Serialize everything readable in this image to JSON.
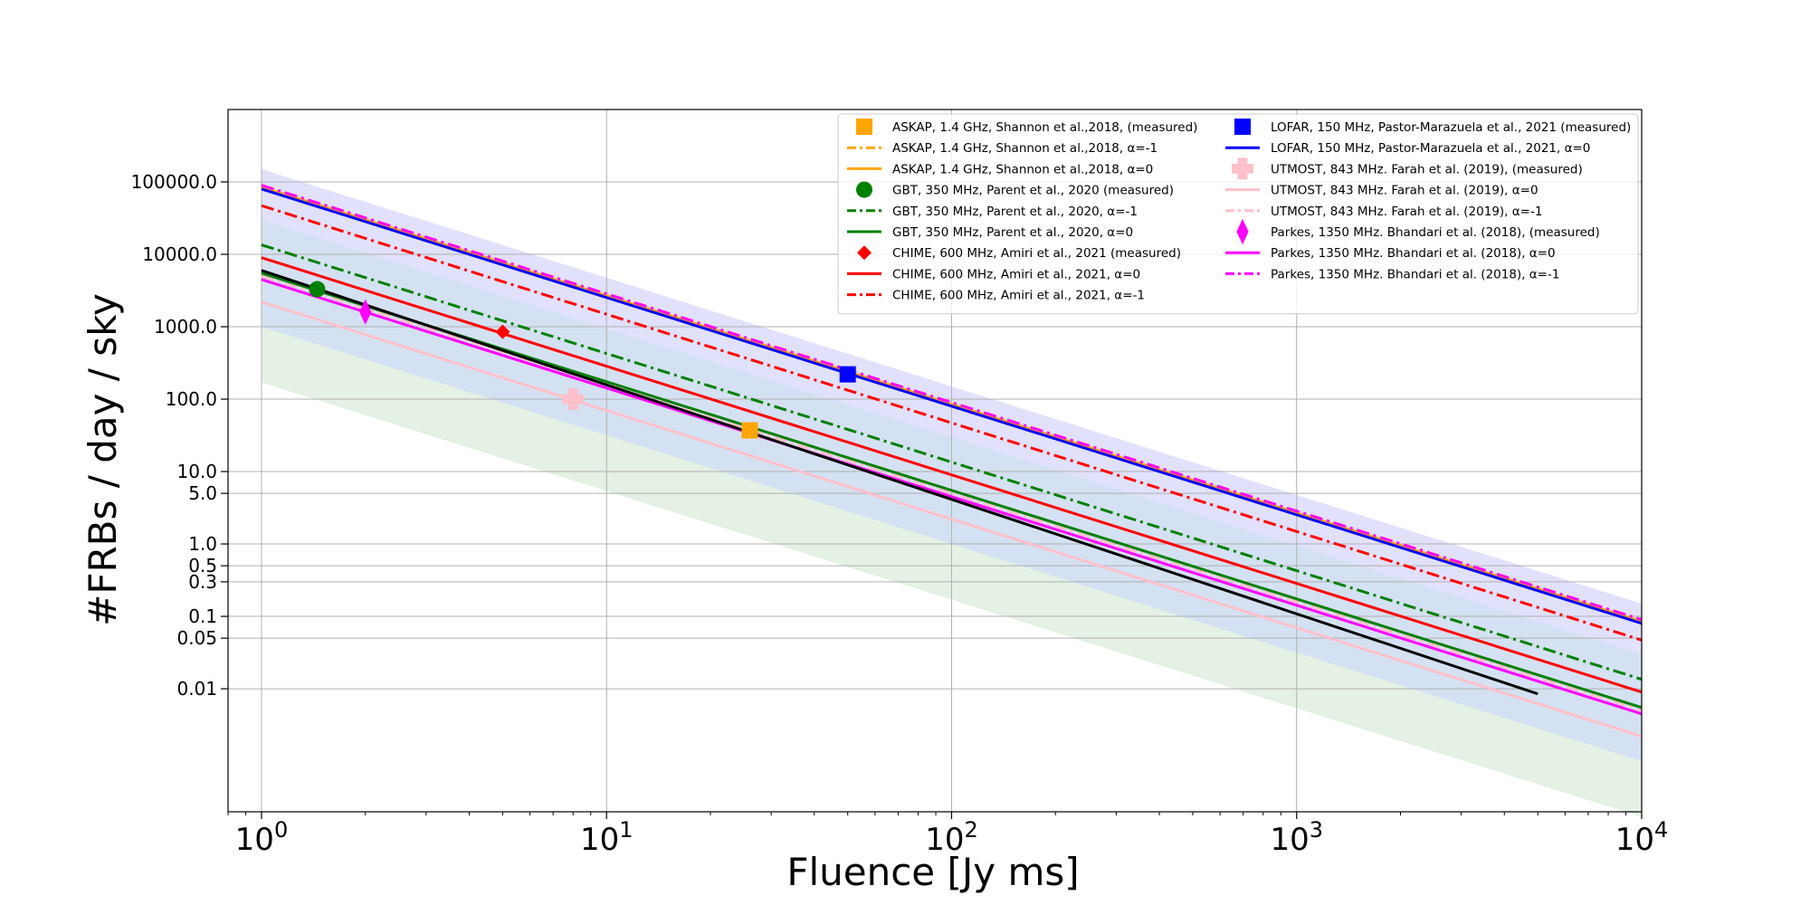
{
  "chart_data": {
    "type": "line",
    "xlabel": "Fluence [Jy ms]",
    "ylabel": "#FRBs / day / sky",
    "xscale": "log",
    "yscale": "log",
    "xlim": [
      0.8,
      10000
    ],
    "ylim": [
      0.0002,
      1000000
    ],
    "grid": true,
    "legend_position": "top-right",
    "legend_columns": 2,
    "x_ticks": [
      {
        "value": 1,
        "base": "10",
        "exp": "0"
      },
      {
        "value": 10,
        "base": "10",
        "exp": "1"
      },
      {
        "value": 100,
        "base": "10",
        "exp": "2"
      },
      {
        "value": 1000,
        "base": "10",
        "exp": "3"
      },
      {
        "value": 10000,
        "base": "10",
        "exp": "4"
      }
    ],
    "y_ticks": [
      {
        "value": 100000,
        "label": "100000.0"
      },
      {
        "value": 10000,
        "label": "10000.0"
      },
      {
        "value": 1000,
        "label": "1000.0"
      },
      {
        "value": 100,
        "label": "100.0"
      },
      {
        "value": 10,
        "label": "10.0"
      },
      {
        "value": 5,
        "label": "5.0"
      },
      {
        "value": 1,
        "label": "1.0"
      },
      {
        "value": 0.5,
        "label": "0.5"
      },
      {
        "value": 0.3,
        "label": "0.3"
      },
      {
        "value": 0.1,
        "label": "0.1"
      },
      {
        "value": 0.05,
        "label": "0.05"
      },
      {
        "value": 0.01,
        "label": "0.01"
      }
    ],
    "bands": [
      {
        "color": "#9d9df5",
        "opacity": 0.3,
        "x": [
          1,
          10000
        ],
        "upper": [
          150000,
          0.15
        ],
        "lower": [
          30000,
          0.03
        ]
      },
      {
        "color": "#aac4e6",
        "opacity": 0.5,
        "x": [
          1,
          10000
        ],
        "upper": [
          30000,
          0.03
        ],
        "lower": [
          1000,
          0.001
        ]
      },
      {
        "color": "#b3d6b3",
        "opacity": 0.35,
        "x": [
          1,
          10000
        ],
        "upper": [
          1000,
          0.001
        ],
        "lower": [
          170,
          0.00017
        ]
      }
    ],
    "series": [
      {
        "name": "ASKAP, 1.4 GHz, Shannon et al.,2018, (measured)",
        "kind": "marker",
        "marker": "square",
        "color": "#ffa500",
        "x": [
          26
        ],
        "y": [
          37
        ]
      },
      {
        "name": "ASKAP, 1.4 GHz, Shannon et al.,2018, α=-1",
        "kind": "line",
        "dash": "dashdot",
        "color": "#ffa500",
        "x": [
          1,
          10000
        ],
        "y": [
          90000,
          0.09
        ]
      },
      {
        "name": "ASKAP, 1.4 GHz, Shannon et al.,2018, α=0",
        "kind": "line",
        "dash": "solid",
        "color": "#ffa500",
        "x": [
          1,
          10000
        ],
        "y": [
          85000,
          0.085
        ]
      },
      {
        "name": "GBT, 350 MHz, Parent et al., 2020 (measured)",
        "kind": "marker",
        "marker": "circle",
        "color": "#008000",
        "x": [
          1.45
        ],
        "y": [
          3300
        ]
      },
      {
        "name": "GBT, 350 MHz, Parent et al., 2020, α=-1",
        "kind": "line",
        "dash": "dashdot",
        "color": "#008000",
        "x": [
          1,
          10000
        ],
        "y": [
          13500,
          0.0135
        ]
      },
      {
        "name": "GBT, 350 MHz, Parent et al., 2020, α=0",
        "kind": "line",
        "dash": "solid",
        "color": "#008000",
        "x": [
          1,
          10000
        ],
        "y": [
          5500,
          0.0055
        ]
      },
      {
        "name": "CHIME, 600 MHz, Amiri et al., 2021 (measured)",
        "kind": "marker",
        "marker": "diamond",
        "color": "#ff0000",
        "x": [
          5
        ],
        "y": [
          850
        ]
      },
      {
        "name": "CHIME, 600 MHz, Amiri et al., 2021, α=0",
        "kind": "line",
        "dash": "solid",
        "color": "#ff0000",
        "x": [
          1,
          10000
        ],
        "y": [
          9000,
          0.009
        ]
      },
      {
        "name": "CHIME, 600 MHz, Amiri et al., 2021, α=-1",
        "kind": "line",
        "dash": "dashdot",
        "color": "#ff0000",
        "x": [
          1,
          10000
        ],
        "y": [
          47000,
          0.047
        ]
      },
      {
        "name": "LOFAR, 150 MHz, Pastor-Marazuela et al., 2021 (measured)",
        "kind": "marker",
        "marker": "square",
        "color": "#0000ff",
        "x": [
          50
        ],
        "y": [
          220
        ]
      },
      {
        "name": "LOFAR, 150 MHz, Pastor-Marazuela et al., 2021, α=0",
        "kind": "line",
        "dash": "solid",
        "color": "#0000ff",
        "x": [
          1,
          10000
        ],
        "y": [
          80000,
          0.08
        ]
      },
      {
        "name": "UTMOST, 843 MHz. Farah et al. (2019), (measured)",
        "kind": "marker",
        "marker": "plus",
        "color": "#ffc0cb",
        "x": [
          8
        ],
        "y": [
          100
        ]
      },
      {
        "name": "UTMOST, 843 MHz. Farah et al. (2019), α=0",
        "kind": "line",
        "dash": "solid",
        "color": "#ffc0cb",
        "x": [
          1,
          10000
        ],
        "y": [
          2200,
          0.0022
        ]
      },
      {
        "name": "UTMOST, 843 MHz. Farah et al. (2019), α=-1",
        "kind": "line",
        "dash": "dashdot",
        "color": "#ffc0cb",
        "x": [
          1,
          10000
        ],
        "y": [
          5000,
          0.005
        ]
      },
      {
        "name": "Parkes, 1350 MHz. Bhandari et al. (2018), (measured)",
        "kind": "marker",
        "marker": "thin_diamond",
        "color": "#ff00ff",
        "x": [
          2
        ],
        "y": [
          1600
        ]
      },
      {
        "name": "Parkes, 1350 MHz. Bhandari et al. (2018), α=0",
        "kind": "line",
        "dash": "solid",
        "color": "#ff00ff",
        "x": [
          1,
          10000
        ],
        "y": [
          4500,
          0.0045
        ]
      },
      {
        "name": "Parkes, 1350 MHz. Bhandari et al. (2018), α=-1",
        "kind": "line",
        "dash": "dashdot",
        "color": "#ff00ff",
        "x": [
          1,
          10000
        ],
        "y": [
          90000,
          0.09
        ]
      },
      {
        "kind": "line",
        "dash": "solid",
        "color": "#000000",
        "x": [
          1,
          5000
        ],
        "y": [
          6000,
          0.0085
        ]
      }
    ]
  }
}
